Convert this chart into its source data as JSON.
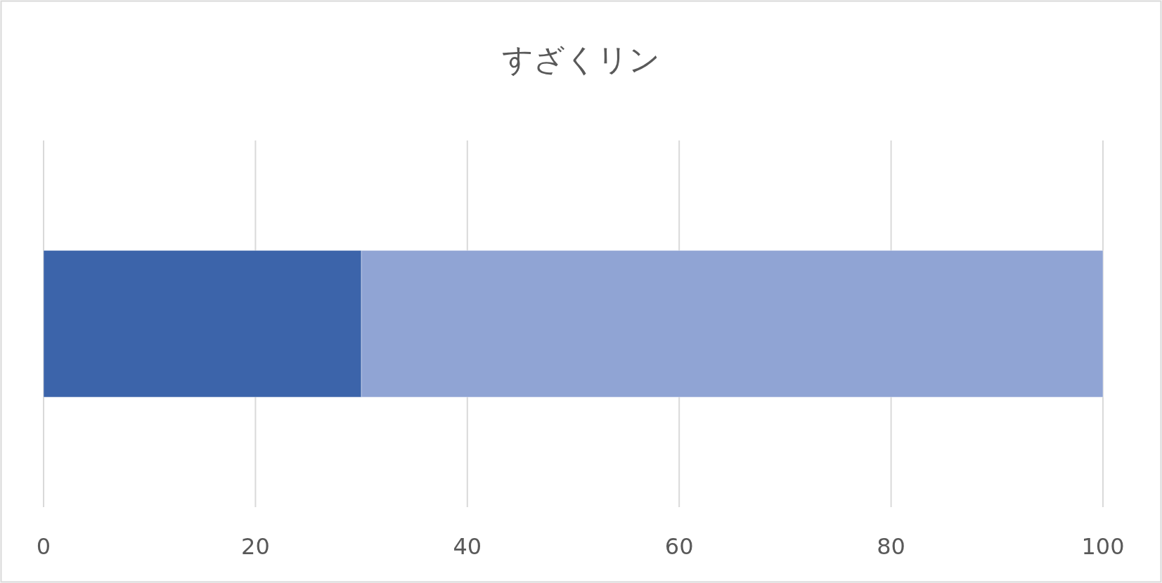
{
  "chart_data": {
    "type": "bar",
    "orientation": "horizontal",
    "stacked": true,
    "title": "すざくリン",
    "categories": [
      null
    ],
    "series": [
      {
        "color": "#3c64aa",
        "values": [
          30
        ]
      },
      {
        "color": "#90a4d4",
        "values": [
          70
        ]
      }
    ],
    "xlim": [
      0,
      100
    ],
    "xticks": [
      0,
      20,
      40,
      60,
      80,
      100
    ],
    "grid": "x"
  }
}
